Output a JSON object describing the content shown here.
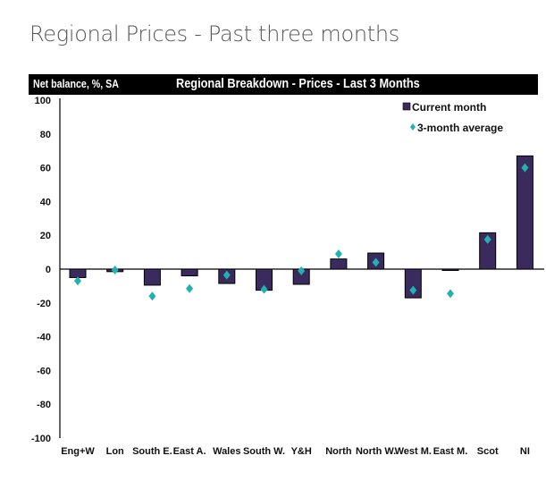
{
  "page": {
    "title": "Regional Prices - Past three months"
  },
  "chart_data": {
    "type": "bar",
    "title": "Regional Breakdown - Prices - Last 3 Months",
    "xlabel": "",
    "ylabel": "Net balance, %, SA",
    "ylim": [
      -100,
      100
    ],
    "yticks": [
      100,
      80,
      60,
      40,
      20,
      0,
      -20,
      -40,
      -60,
      -80,
      -100
    ],
    "grid": false,
    "legend_position": "top-right",
    "categories": [
      "Eng+W",
      "Lon",
      "South E.",
      "East A.",
      "Wales",
      "South W.",
      "Y&H",
      "North",
      "North W.",
      "West M.",
      "East M.",
      "Scot",
      "NI"
    ],
    "series": [
      {
        "name": "Current month",
        "kind": "bar",
        "color": "#3b2a5e",
        "values": [
          -5,
          -1.5,
          -9.5,
          -4,
          -8.5,
          -12.5,
          -9,
          6,
          9.5,
          -17,
          -0.5,
          21.5,
          67
        ]
      },
      {
        "name": "3-month average",
        "kind": "marker",
        "marker": "diamond",
        "color": "#20b2b0",
        "values": [
          -7,
          -0.5,
          -16,
          -11.5,
          -3.5,
          -12,
          -1,
          9,
          4,
          -12.5,
          -14.5,
          17.5,
          60
        ]
      }
    ]
  }
}
